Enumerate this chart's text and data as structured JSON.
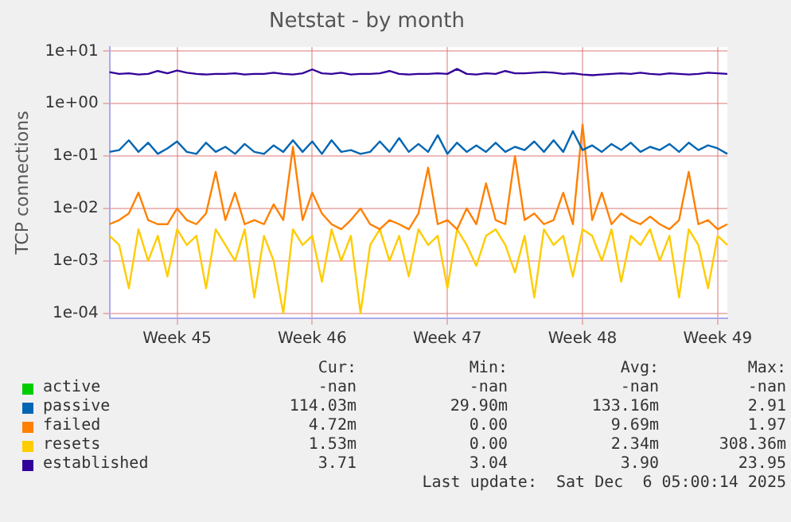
{
  "chart_data": {
    "type": "line",
    "title": "Netstat - by month",
    "ylabel": "TCP connections",
    "log": "y",
    "grid": true,
    "legend": "bottom",
    "marker": "none",
    "line_style": "solid",
    "categories": [
      null,
      null,
      null,
      null,
      null,
      null,
      null,
      "Week 45",
      null,
      null,
      null,
      null,
      null,
      null,
      null,
      null,
      null,
      null,
      null,
      null,
      null,
      "Week 46",
      null,
      null,
      null,
      null,
      null,
      null,
      null,
      null,
      null,
      null,
      null,
      null,
      null,
      "Week 47",
      null,
      null,
      null,
      null,
      null,
      null,
      null,
      null,
      null,
      null,
      null,
      null,
      null,
      "Week 48",
      null,
      null,
      null,
      null,
      null,
      null,
      null,
      null,
      null,
      null,
      null,
      null,
      null,
      "Week 49",
      null
    ],
    "ylim": [
      8e-05,
      12
    ],
    "yticks": [
      {
        "value": 0.0001,
        "label": "1e-04"
      },
      {
        "value": 0.001,
        "label": "1e-03"
      },
      {
        "value": 0.01,
        "label": "1e-02"
      },
      {
        "value": 0.1,
        "label": "1e-01"
      },
      {
        "value": 1,
        "label": "1e+00"
      },
      {
        "value": 10,
        "label": "1e+01"
      }
    ],
    "series": [
      {
        "name": "active",
        "color": "#00cc00",
        "values": [
          null,
          null,
          null,
          null,
          null,
          null,
          null,
          null,
          null,
          null,
          null,
          null,
          null,
          null,
          null,
          null,
          null,
          null,
          null,
          null,
          null,
          null,
          null,
          null,
          null,
          null,
          null,
          null,
          null,
          null,
          null,
          null,
          null,
          null,
          null,
          null,
          null,
          null,
          null,
          null,
          null,
          null,
          null,
          null,
          null,
          null,
          null,
          null,
          null,
          null,
          null,
          null,
          null,
          null,
          null,
          null,
          null,
          null,
          null,
          null,
          null,
          null,
          null,
          null,
          null
        ]
      },
      {
        "name": "passive",
        "color": "#0066b3",
        "values": [
          0.12,
          0.13,
          0.2,
          0.12,
          0.18,
          0.11,
          0.14,
          0.19,
          0.12,
          0.11,
          0.18,
          0.12,
          0.15,
          0.11,
          0.17,
          0.12,
          0.11,
          0.16,
          0.12,
          0.2,
          0.12,
          0.19,
          0.11,
          0.2,
          0.12,
          0.13,
          0.11,
          0.12,
          0.19,
          0.12,
          0.22,
          0.12,
          0.17,
          0.12,
          0.25,
          0.11,
          0.18,
          0.12,
          0.16,
          0.12,
          0.18,
          0.12,
          0.15,
          0.13,
          0.19,
          0.12,
          0.2,
          0.12,
          0.3,
          0.13,
          0.16,
          0.12,
          0.17,
          0.13,
          0.18,
          0.12,
          0.15,
          0.13,
          0.17,
          0.12,
          0.18,
          0.13,
          0.16,
          0.14,
          0.11
        ]
      },
      {
        "name": "failed",
        "color": "#ff8000",
        "values": [
          0.005,
          0.006,
          0.008,
          0.02,
          0.006,
          0.005,
          0.005,
          0.01,
          0.006,
          0.005,
          0.008,
          0.05,
          0.006,
          0.02,
          0.005,
          0.006,
          0.005,
          0.012,
          0.006,
          0.15,
          0.006,
          0.02,
          0.008,
          0.005,
          0.004,
          0.006,
          0.01,
          0.005,
          0.004,
          0.006,
          0.005,
          0.004,
          0.008,
          0.06,
          0.005,
          0.006,
          0.004,
          0.01,
          0.005,
          0.03,
          0.006,
          0.005,
          0.1,
          0.006,
          0.008,
          0.005,
          0.006,
          0.02,
          0.005,
          0.4,
          0.006,
          0.02,
          0.005,
          0.008,
          0.006,
          0.005,
          0.007,
          0.005,
          0.004,
          0.006,
          0.05,
          0.005,
          0.006,
          0.004,
          0.005
        ]
      },
      {
        "name": "resets",
        "color": "#ffcc00",
        "values": [
          0.003,
          0.002,
          0.0003,
          0.004,
          0.001,
          0.003,
          0.0005,
          0.004,
          0.002,
          0.003,
          0.0003,
          0.004,
          0.002,
          0.001,
          0.004,
          0.0002,
          0.003,
          0.001,
          0.0001,
          0.004,
          0.002,
          0.003,
          0.0004,
          0.004,
          0.001,
          0.003,
          0.0001,
          0.002,
          0.004,
          0.001,
          0.003,
          0.0005,
          0.004,
          0.002,
          0.003,
          0.0003,
          0.004,
          0.002,
          0.0008,
          0.003,
          0.004,
          0.002,
          0.0006,
          0.003,
          0.0002,
          0.004,
          0.002,
          0.003,
          0.0005,
          0.004,
          0.003,
          0.001,
          0.004,
          0.0004,
          0.003,
          0.002,
          0.004,
          0.001,
          0.003,
          0.0002,
          0.004,
          0.002,
          0.0003,
          0.003,
          0.002
        ]
      },
      {
        "name": "established",
        "color": "#330099",
        "values": [
          4.0,
          3.7,
          3.8,
          3.6,
          3.7,
          4.2,
          3.8,
          4.3,
          3.9,
          3.7,
          3.6,
          3.7,
          3.7,
          3.8,
          3.6,
          3.7,
          3.7,
          3.9,
          3.7,
          3.6,
          3.8,
          4.5,
          3.8,
          3.7,
          3.9,
          3.6,
          3.7,
          3.7,
          3.8,
          4.2,
          3.7,
          3.6,
          3.7,
          3.7,
          3.8,
          3.7,
          4.6,
          3.7,
          3.6,
          3.8,
          3.7,
          4.2,
          3.8,
          3.8,
          3.9,
          4.0,
          3.9,
          3.7,
          3.8,
          3.6,
          3.5,
          3.6,
          3.7,
          3.8,
          3.7,
          3.9,
          3.7,
          3.6,
          3.8,
          3.7,
          3.6,
          3.7,
          3.9,
          3.8,
          3.7
        ]
      }
    ],
    "annotations": [
      "Cur:",
      "Min:",
      "Avg:",
      "Max:",
      "-nan",
      "-nan",
      "-nan",
      "-nan",
      "114.03m",
      "29.90m",
      "133.16m",
      "2.91",
      "4.72m",
      "0.00",
      "9.69m",
      "1.97",
      "1.53m",
      "0.00",
      "2.34m",
      "308.36m",
      "3.71",
      "3.04",
      "3.90",
      "23.95",
      "Last update:  Sat Dec  6 05:00:14 2025"
    ]
  }
}
